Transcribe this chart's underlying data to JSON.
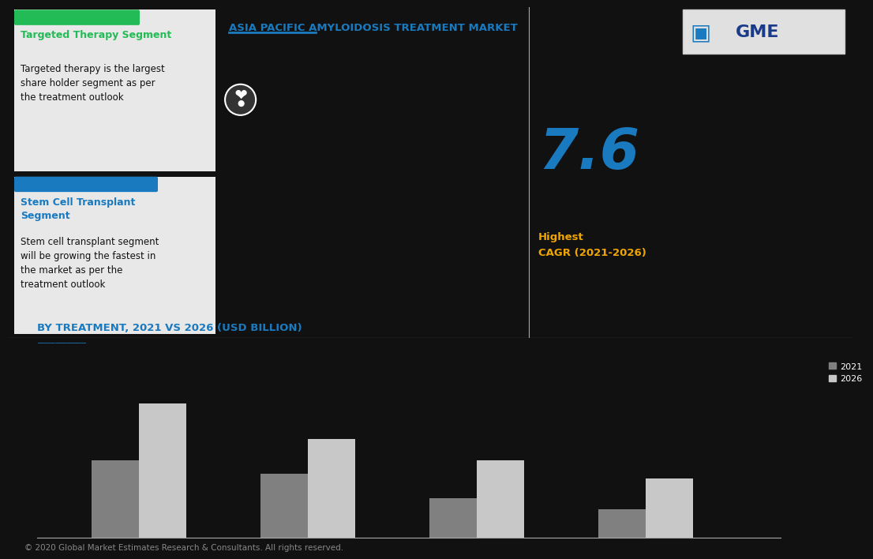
{
  "title": "ASIA PACIFIC AMYLOIDOSIS TREATMENT MARKET",
  "title_color": "#1a7abf",
  "chart_title": "BY TREATMENT, 2021 VS 2026 (USD BILLION)",
  "chart_title_color": "#1a7abf",
  "bg_color": "#111111",
  "box1_header": "Targeted Therapy Segment",
  "box1_header_color": "#22bb55",
  "box1_bar_color": "#22bb55",
  "box1_text": "Targeted therapy is the largest\nshare holder segment as per\nthe treatment outlook",
  "box2_header": "Stem Cell Transplant\nSegment",
  "box2_header_color": "#1a7abf",
  "box2_bar_color": "#1a7abf",
  "box2_text": "Stem cell transplant segment\nwill be growing the fastest in\nthe market as per the\ntreatment outlook",
  "box_bg": "#e8e8e8",
  "cagr_value": "7.6",
  "cagr_value_color": "#1a7abf",
  "cagr_label1": "Highest",
  "cagr_label2": "CAGR (2021-2026)",
  "cagr_label_color": "#f0a500",
  "categories": [
    "",
    "",
    "",
    ""
  ],
  "values_2021": [
    0.55,
    0.45,
    0.28,
    0.2
  ],
  "values_2026": [
    0.95,
    0.7,
    0.55,
    0.42
  ],
  "color_2021": "#808080",
  "color_2026": "#c8c8c8",
  "legend_2021": "2021",
  "legend_2026": "2026",
  "footer": "© 2020 Global Market Estimates Research & Consultants. All rights reserved.",
  "footer_color": "#888888",
  "accent_line_color": "#1a7abf",
  "section_line_color": "#aaaaaa",
  "divider_color": "#aaaaaa",
  "chevron_color": "#ffffff"
}
